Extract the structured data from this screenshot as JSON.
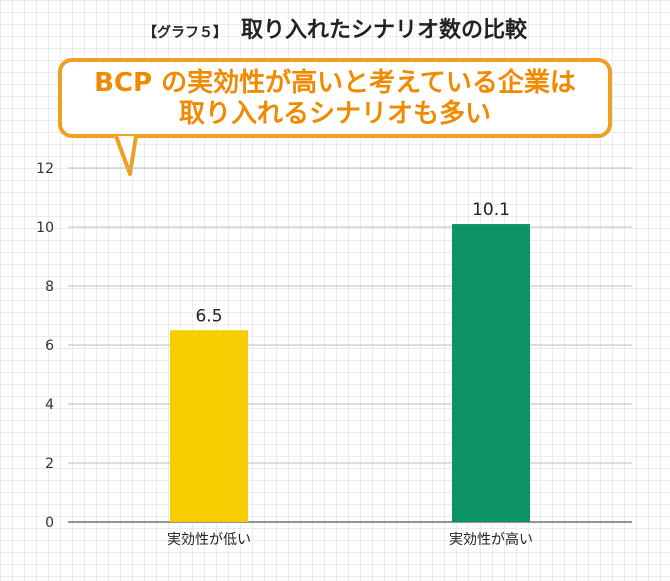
{
  "title": {
    "tag": "【グラフ５】",
    "main": "取り入れたシナリオ数の比較"
  },
  "callout": {
    "line1": "BCP の実効性が高いと考えている企業は",
    "line2": "取り入れるシナリオも多い"
  },
  "colors": {
    "accent": "#f0a020",
    "callout_text": "#f08a00",
    "bar_low": "#f7cc00",
    "bar_high": "#0d9464"
  },
  "chart_data": {
    "type": "bar",
    "categories": [
      "実効性が低い",
      "実効性が高い"
    ],
    "values": [
      6.5,
      10.1
    ],
    "value_labels": [
      "6.5",
      "10.1"
    ],
    "bar_colors": [
      "#f7cc00",
      "#0d9464"
    ],
    "ylim": [
      0,
      12
    ],
    "yticks": [
      0,
      2,
      4,
      6,
      8,
      10,
      12
    ],
    "grid": true,
    "xlabel": "",
    "ylabel": ""
  }
}
